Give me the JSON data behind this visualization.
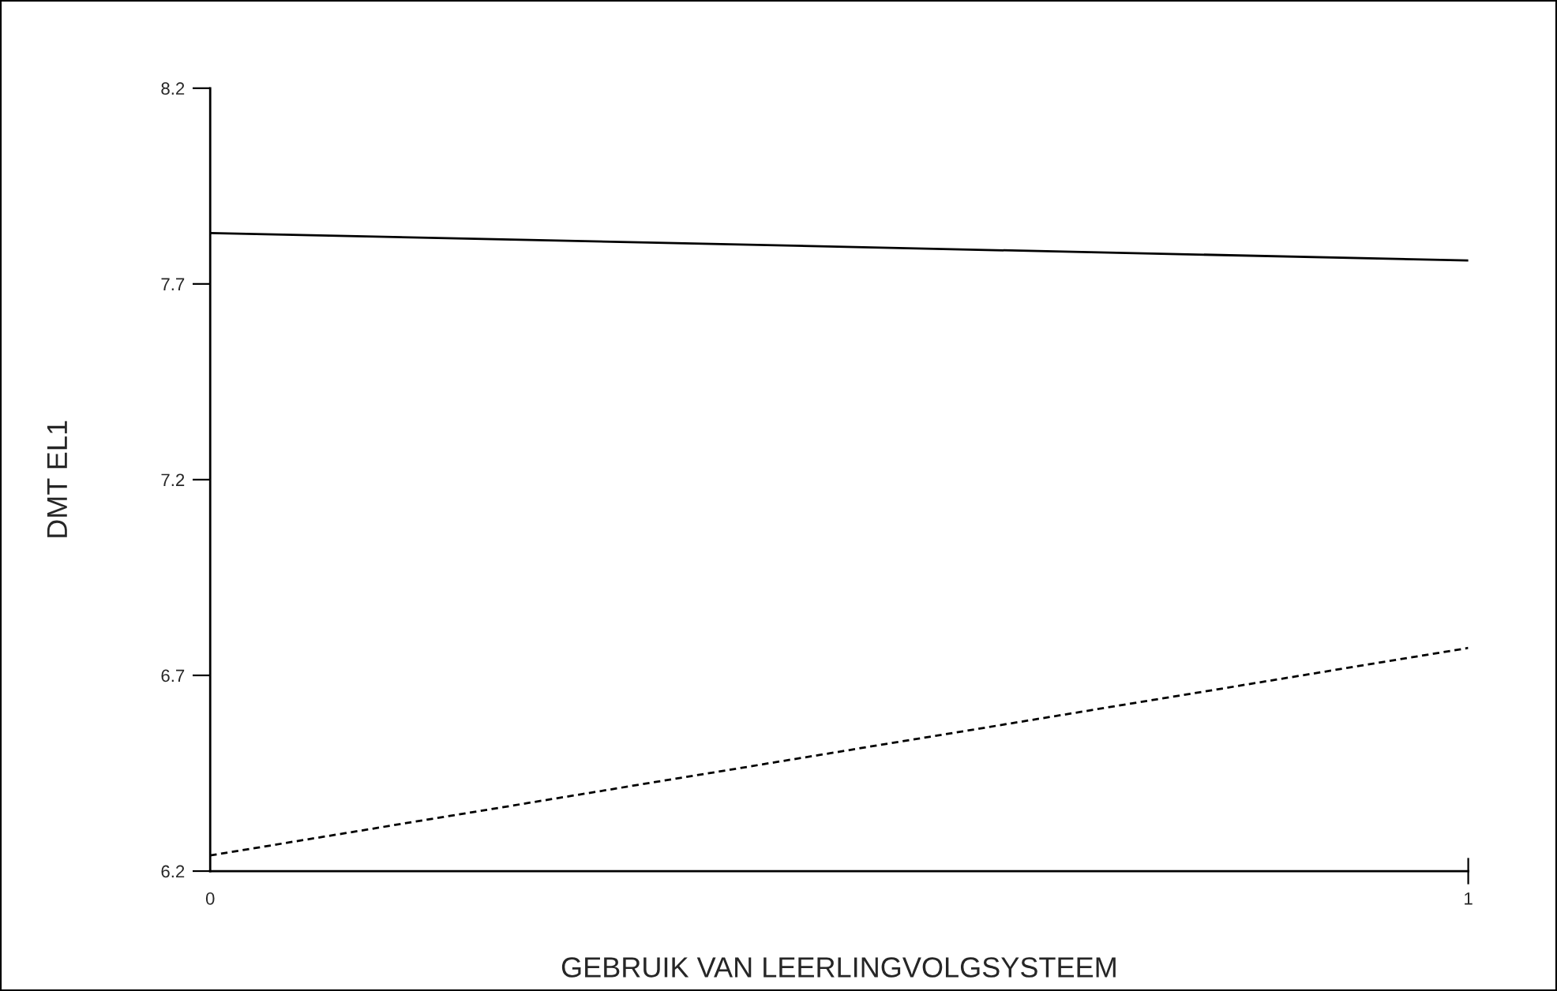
{
  "chart_data": {
    "type": "line",
    "xlabel": "GEBRUIK VAN LEERLINGVOLGSYSTEEM",
    "ylabel": "DMT EL1",
    "x": [
      0,
      1
    ],
    "series": [
      {
        "color": "#000000",
        "line_style": "solid",
        "values": [
          7.83,
          7.76
        ]
      },
      {
        "color": "#000000",
        "line_style": "dashed",
        "values": [
          6.24,
          6.77
        ]
      }
    ],
    "xlim": [
      0,
      1
    ],
    "xticks": [
      0,
      1
    ],
    "ylim": [
      6.2,
      8.2
    ],
    "yticks": [
      6.2,
      6.7,
      7.2,
      7.7,
      8.2
    ],
    "marker": "none"
  }
}
